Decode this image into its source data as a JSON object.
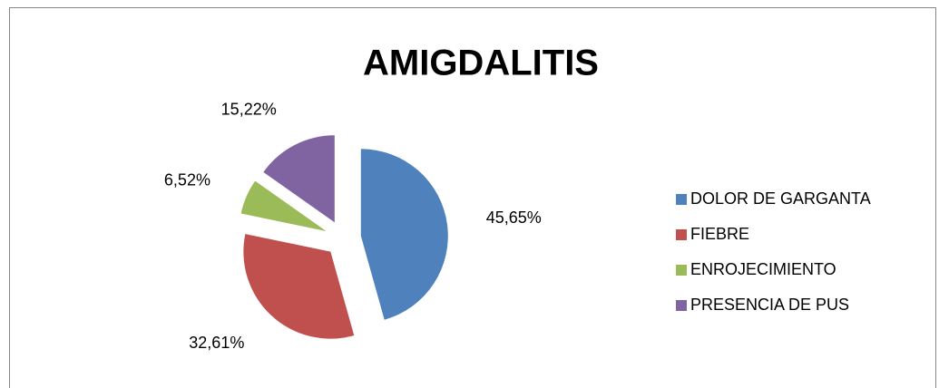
{
  "chart_data": {
    "type": "pie",
    "title": "AMIGDALITIS",
    "categories": [
      "DOLOR DE GARGANTA",
      "FIEBRE",
      "ENROJECIMIENTO",
      "PRESENCIA DE PUS"
    ],
    "values": [
      45.65,
      32.61,
      6.52,
      15.22
    ],
    "value_labels": [
      "45,65%",
      "32,61%",
      "6,52%",
      "15,22%"
    ],
    "colors": [
      "#4f81bd",
      "#c0504d",
      "#9bbb59",
      "#8064a2"
    ],
    "legend": "right"
  }
}
